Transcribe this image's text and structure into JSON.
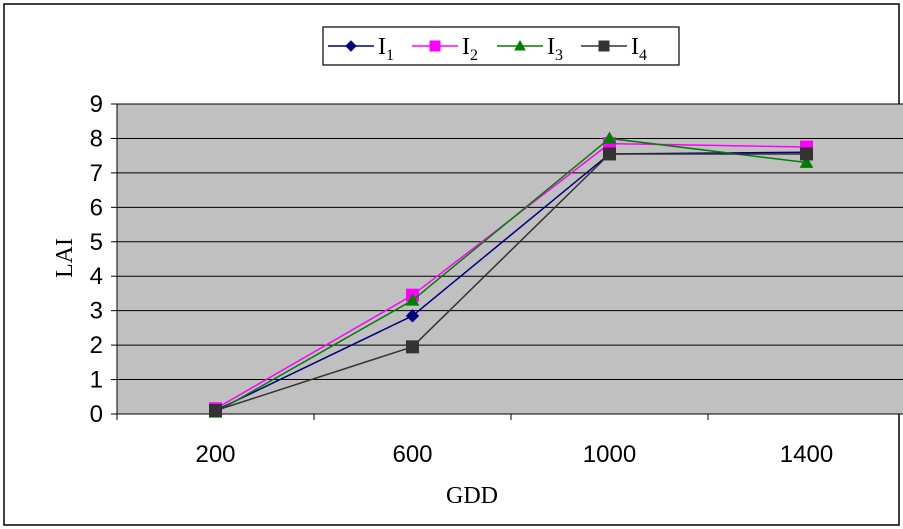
{
  "chart_data": {
    "type": "line",
    "title": "",
    "xlabel": "GDD",
    "ylabel": "LAI",
    "categories": [
      "200",
      "600",
      "1000",
      "1400"
    ],
    "ylim": [
      0,
      9
    ],
    "yticks": [
      0,
      1,
      2,
      3,
      4,
      5,
      6,
      7,
      8,
      9
    ],
    "grid": "horizontal",
    "plot_background": "#c0c0c0",
    "legend_position": "top",
    "series": [
      {
        "name": "I",
        "subscript": "1",
        "marker": "diamond",
        "color": "#000080",
        "values": [
          0.1,
          2.85,
          7.55,
          7.6
        ]
      },
      {
        "name": "I",
        "subscript": "2",
        "marker": "square",
        "color": "#ff00ff",
        "values": [
          0.15,
          3.45,
          7.85,
          7.75
        ]
      },
      {
        "name": "I",
        "subscript": "3",
        "marker": "triangle",
        "color": "#008000",
        "values": [
          0.05,
          3.3,
          8.0,
          7.3
        ]
      },
      {
        "name": "I",
        "subscript": "4",
        "marker": "square",
        "color": "#333333",
        "values": [
          0.1,
          1.95,
          7.55,
          7.55
        ]
      }
    ]
  }
}
